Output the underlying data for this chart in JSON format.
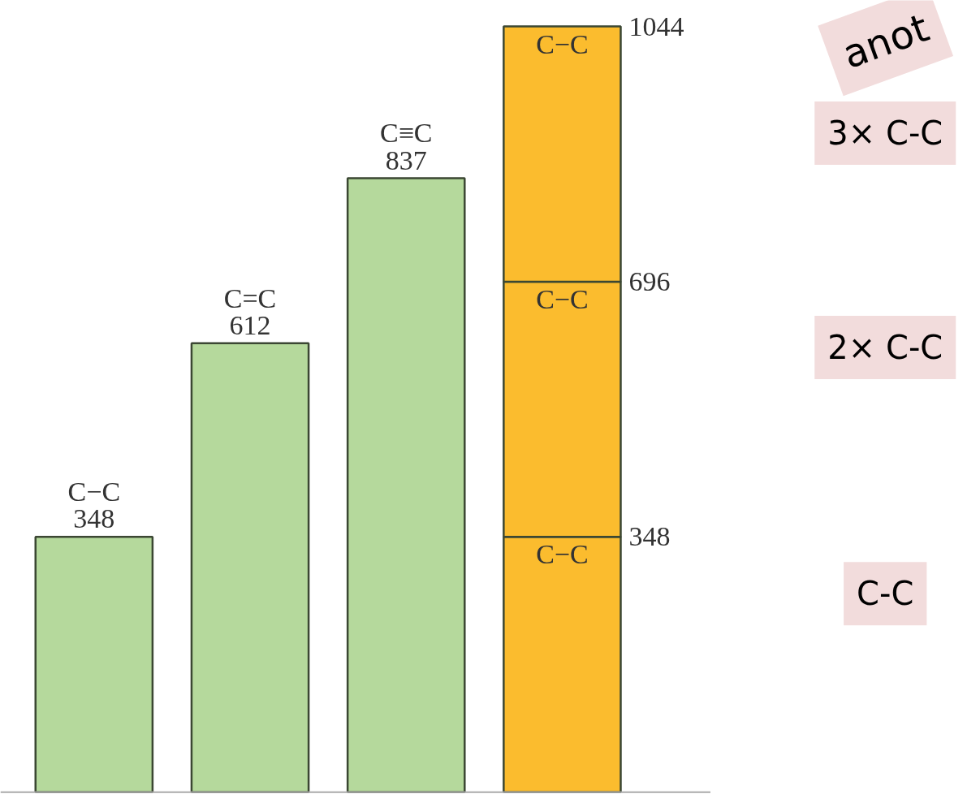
{
  "chart_data": {
    "type": "bar",
    "stacked": true,
    "categories": [
      null,
      null,
      null,
      null
    ],
    "tick_labels": false,
    "grid": false,
    "series": [
      {
        "color": "#b5d99c",
        "values": [
          348,
          612,
          837,
          null
        ],
        "value_labels": [
          "C−C\n348",
          "C=C\n612",
          "C≡C\n837",
          null
        ]
      },
      {
        "color": "#fbbc2e",
        "values": [
          null,
          null,
          null,
          348
        ],
        "value_labels": [
          null,
          null,
          null,
          "C−C"
        ]
      },
      {
        "color": "#fbbc2e",
        "values": [
          null,
          null,
          null,
          348
        ],
        "value_labels": [
          null,
          null,
          null,
          "C−C"
        ]
      },
      {
        "color": "#fbbc2e",
        "values": [
          null,
          null,
          null,
          348
        ],
        "value_labels": [
          null,
          null,
          null,
          "C−C"
        ]
      }
    ],
    "annotations": [
      "348",
      "696",
      "1044",
      "3× C-C",
      "2× C-C",
      "C-C",
      "anot"
    ]
  }
}
